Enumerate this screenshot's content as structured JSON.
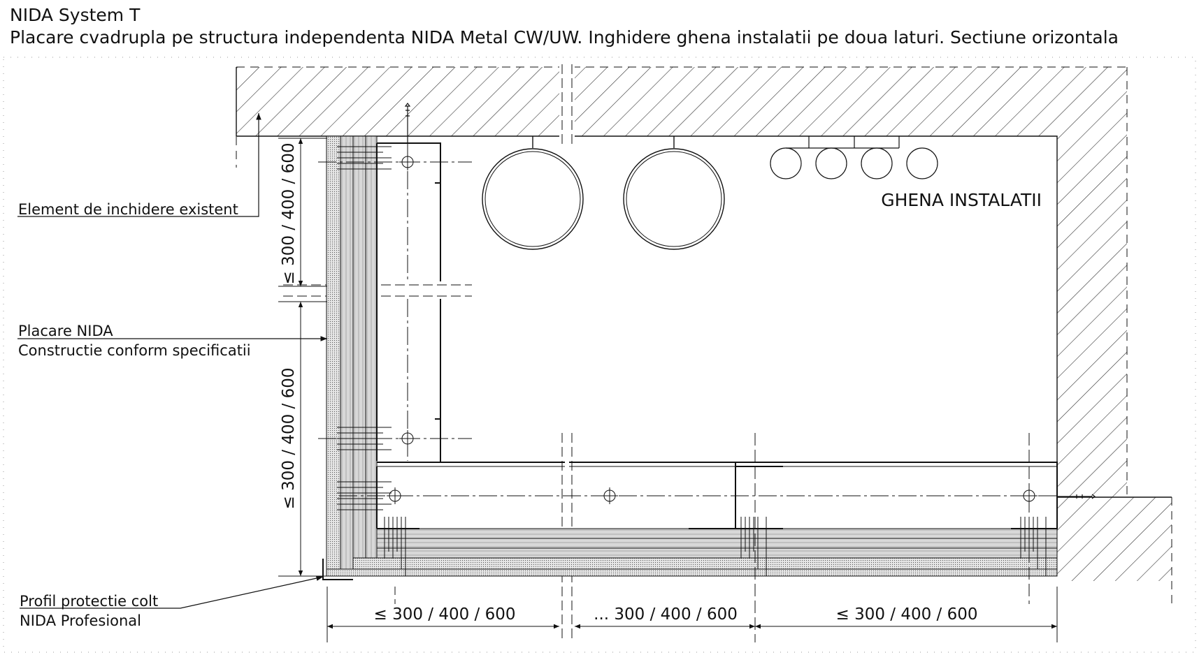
{
  "header": {
    "title": "NIDA System T",
    "subtitle": "Placare cvadrupla pe structura independenta NIDA Metal CW/UW. Inghidere ghena instalatii pe doua laturi. Sectiune orizontala"
  },
  "labels": {
    "element_inchidere": "Element de inchidere existent",
    "placare_line1": "Placare NIDA",
    "placare_line2": "Constructie conform specificatii",
    "profil_line1": "Profil protectie colt",
    "profil_line2": "NIDA Profesional",
    "ghena": "GHENA INSTALATII"
  },
  "dimensions": {
    "vertical_top": "≤ 300 / 400 / 600",
    "vertical_bottom": "≤ 300 / 400 / 600",
    "horizontal_left": "≤ 300 / 400 / 600",
    "horizontal_middle": "... 300 / 400 / 600",
    "horizontal_right": "≤ 300 / 400 / 600"
  },
  "colors": {
    "line": "#111111",
    "hatch": "#333333",
    "board_fill": "#d9d9d9"
  }
}
